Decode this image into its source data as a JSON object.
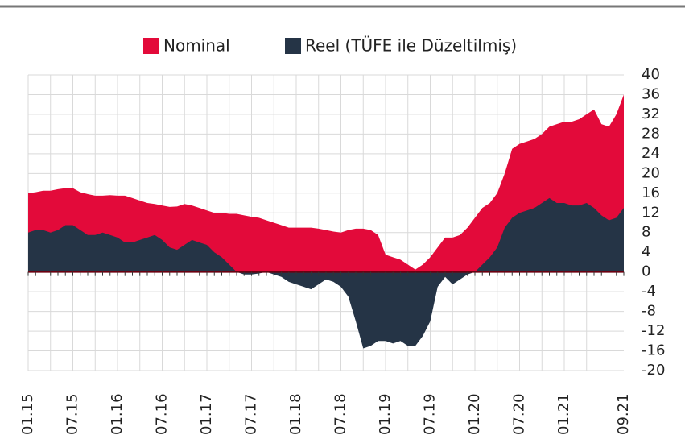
{
  "chart_data": {
    "type": "area",
    "categories": [
      "01.15",
      null,
      null,
      null,
      null,
      null,
      "07.15",
      null,
      null,
      null,
      null,
      null,
      "01.16",
      null,
      null,
      null,
      null,
      null,
      "07.16",
      null,
      null,
      null,
      null,
      null,
      "01.17",
      null,
      null,
      null,
      null,
      null,
      "07.17",
      null,
      null,
      null,
      null,
      null,
      "01.18",
      null,
      null,
      null,
      null,
      null,
      "07.18",
      null,
      null,
      null,
      null,
      null,
      "01.19",
      null,
      null,
      null,
      null,
      null,
      "07.19",
      null,
      null,
      null,
      null,
      null,
      "01.20",
      null,
      null,
      null,
      null,
      null,
      "07.20",
      null,
      null,
      null,
      null,
      null,
      "01.21",
      null,
      null,
      null,
      null,
      null,
      null,
      null,
      "09.21"
    ],
    "series": [
      {
        "name": "Nominal",
        "color": "#e30a3a",
        "values": [
          16,
          16.2,
          16.5,
          16.5,
          16.8,
          17,
          17,
          16.2,
          15.8,
          15.5,
          15.5,
          15.6,
          15.5,
          15.5,
          15,
          14.5,
          14,
          13.8,
          13.5,
          13.2,
          13.3,
          13.8,
          13.5,
          13,
          12.5,
          12,
          12,
          11.8,
          11.8,
          11.5,
          11.2,
          11,
          10.5,
          10,
          9.5,
          9,
          9,
          9,
          9,
          8.8,
          8.5,
          8.2,
          8,
          8.5,
          8.8,
          8.8,
          8.5,
          7.5,
          3.5,
          3,
          2.5,
          1.5,
          0.5,
          1.5,
          3,
          5,
          7,
          7,
          7.5,
          9,
          11,
          13,
          14,
          16,
          20,
          25,
          26,
          26.5,
          27,
          28,
          29.5,
          30,
          30.5,
          30.5,
          31,
          32,
          33,
          30,
          29.5,
          32,
          36
        ]
      },
      {
        "name": "Reel (TÜFE ile Düzeltilmiş)",
        "color": "#253446",
        "values": [
          8,
          8.5,
          8.5,
          8,
          8.5,
          9.5,
          9.5,
          8.5,
          7.5,
          7.5,
          8,
          7.5,
          7,
          6,
          6,
          6.5,
          7,
          7.5,
          6.5,
          5,
          4.5,
          5.5,
          6.5,
          6,
          5.5,
          4,
          3,
          1.5,
          0,
          -0.5,
          -0.5,
          -0.3,
          0,
          -0.5,
          -1,
          -2,
          -2.5,
          -3,
          -3.5,
          -2.5,
          -1.5,
          -2,
          -3,
          -5,
          -10,
          -15.5,
          -15,
          -14,
          -14,
          -14.5,
          -14,
          -15,
          -15,
          -13,
          -10,
          -3,
          -1,
          -2.5,
          -1.5,
          -0.5,
          0,
          1.5,
          3,
          5,
          9,
          11,
          12,
          12.5,
          13,
          14,
          15,
          14,
          14,
          13.5,
          13.5,
          14,
          13,
          11.5,
          10.5,
          11,
          13
        ]
      }
    ],
    "ylim": [
      -20,
      40
    ],
    "yticks": [
      -20,
      -16,
      -12,
      -8,
      -4,
      0,
      4,
      8,
      12,
      16,
      20,
      24,
      28,
      32,
      36,
      40
    ],
    "grid": true
  }
}
